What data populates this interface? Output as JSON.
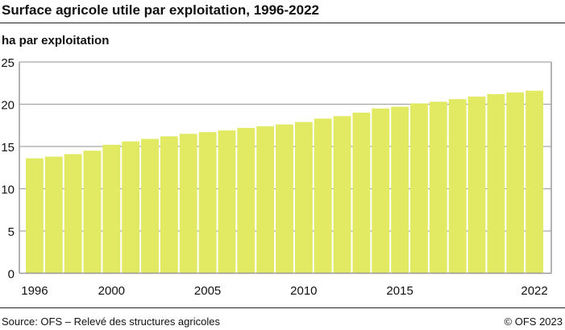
{
  "title": "Surface agricole utile par exploitation, 1996-2022",
  "source": "Source: OFS – Relevé des structures agricoles",
  "copyright": "© OFS 2023",
  "chart_data": {
    "type": "bar",
    "title": "Surface agricole utile par exploitation, 1996-2022",
    "ylabel": "ha par exploitation",
    "xlabel": "",
    "categories": [
      1996,
      1997,
      1998,
      1999,
      2000,
      2001,
      2002,
      2003,
      2004,
      2005,
      2006,
      2007,
      2008,
      2009,
      2010,
      2011,
      2012,
      2013,
      2014,
      2015,
      2016,
      2017,
      2018,
      2019,
      2020,
      2021,
      2022
    ],
    "values": [
      13.6,
      13.8,
      14.1,
      14.5,
      15.2,
      15.6,
      15.9,
      16.2,
      16.5,
      16.7,
      16.9,
      17.2,
      17.4,
      17.6,
      17.9,
      18.3,
      18.6,
      19.0,
      19.5,
      19.7,
      20.1,
      20.3,
      20.6,
      20.9,
      21.2,
      21.4,
      21.6
    ],
    "ylim": [
      0,
      25
    ],
    "yticks": [
      0,
      5,
      10,
      15,
      20,
      25
    ],
    "xtick_labels": [
      "1996",
      "2000",
      "2005",
      "2010",
      "2015",
      "2022"
    ],
    "grid": true,
    "bar_color": "#e1ea62"
  }
}
